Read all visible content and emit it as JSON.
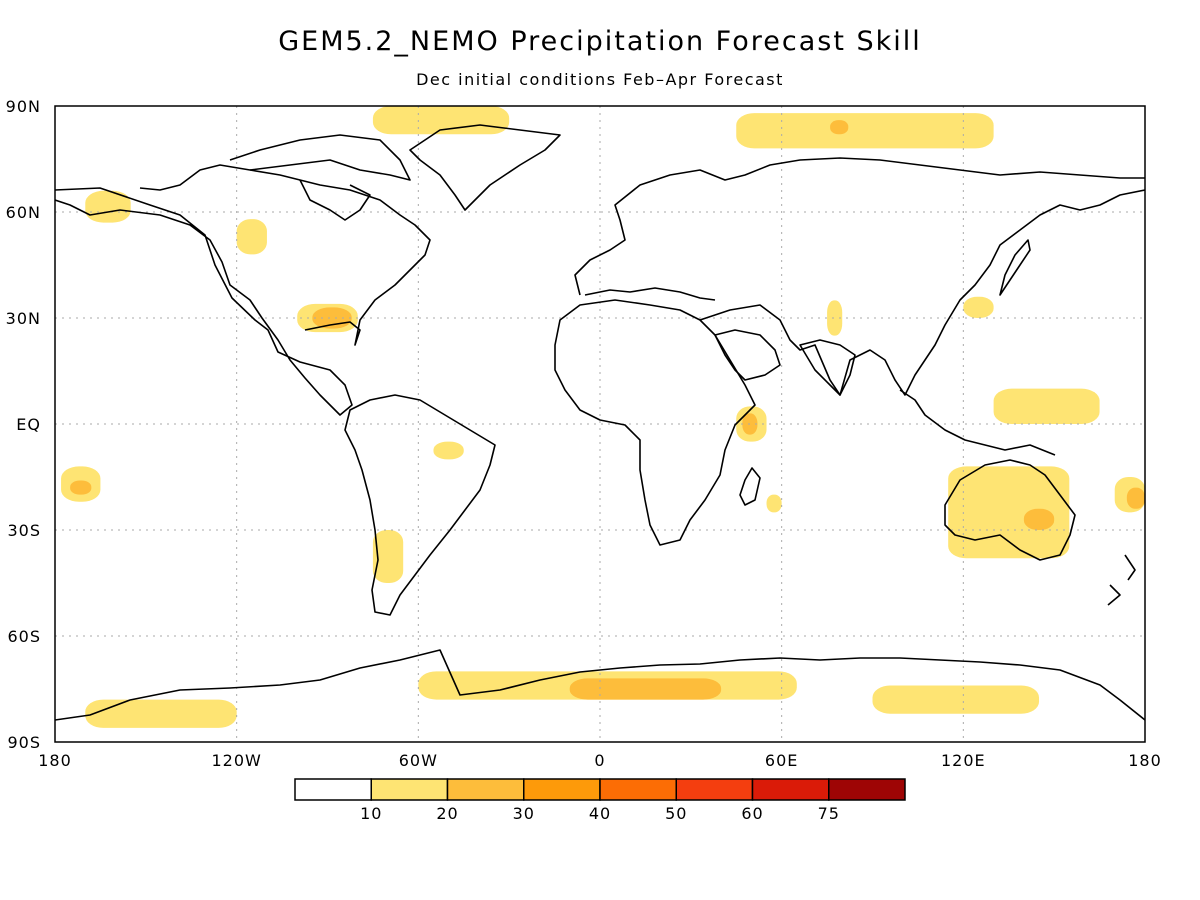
{
  "title": "GEM5.2_NEMO Precipitation Forecast Skill",
  "subtitle": "Dec initial conditions  Feb–Apr Forecast",
  "axes": {
    "lat_ticks": [
      {
        "value": 90,
        "label": "90N"
      },
      {
        "value": 60,
        "label": "60N"
      },
      {
        "value": 30,
        "label": "30N"
      },
      {
        "value": 0,
        "label": "EQ"
      },
      {
        "value": -30,
        "label": "30S"
      },
      {
        "value": -60,
        "label": "60S"
      },
      {
        "value": -90,
        "label": "90S"
      }
    ],
    "lon_ticks": [
      {
        "value": -180,
        "label": "180"
      },
      {
        "value": -120,
        "label": "120W"
      },
      {
        "value": -60,
        "label": "60W"
      },
      {
        "value": 0,
        "label": "0"
      },
      {
        "value": 60,
        "label": "60E"
      },
      {
        "value": 120,
        "label": "120E"
      },
      {
        "value": 180,
        "label": "180"
      }
    ],
    "grid": true
  },
  "colorbar": {
    "bins": [
      {
        "color": "#ffffff"
      },
      {
        "color": "#fee473"
      },
      {
        "color": "#fdbd3b"
      },
      {
        "color": "#fd9a0a"
      },
      {
        "color": "#fc6d05"
      },
      {
        "color": "#f43e0f"
      },
      {
        "color": "#da1b08"
      },
      {
        "color": "#9e0505"
      }
    ],
    "labels": [
      "10",
      "20",
      "30",
      "40",
      "50",
      "60",
      "75"
    ]
  },
  "chart_data": {
    "type": "heatmap",
    "projection": "equirectangular",
    "lon_range": [
      -180,
      180
    ],
    "lat_range": [
      -90,
      90
    ],
    "variable": "precipitation forecast skill",
    "units": "%",
    "levels": [
      10,
      20,
      30,
      40,
      50,
      60,
      75
    ],
    "regions": [
      {
        "level": 10,
        "lon": [
          -60,
          65
        ],
        "lat": [
          -78,
          -70
        ]
      },
      {
        "level": 20,
        "lon": [
          -10,
          40
        ],
        "lat": [
          -78,
          -72
        ]
      },
      {
        "level": 10,
        "lon": [
          -170,
          -120
        ],
        "lat": [
          -86,
          -78
        ]
      },
      {
        "level": 10,
        "lon": [
          90,
          145
        ],
        "lat": [
          -82,
          -74
        ]
      },
      {
        "level": 10,
        "lon": [
          -75,
          -30
        ],
        "lat": [
          82,
          90
        ]
      },
      {
        "level": 10,
        "lon": [
          45,
          130
        ],
        "lat": [
          78,
          88
        ]
      },
      {
        "level": 20,
        "lon": [
          76,
          82
        ],
        "lat": [
          82,
          86
        ]
      },
      {
        "level": 10,
        "lon": [
          -100,
          -80
        ],
        "lat": [
          26,
          34
        ]
      },
      {
        "level": 20,
        "lon": [
          -95,
          -82
        ],
        "lat": [
          27,
          33
        ]
      },
      {
        "level": 10,
        "lon": [
          115,
          155
        ],
        "lat": [
          -38,
          -12
        ]
      },
      {
        "level": 20,
        "lon": [
          140,
          150
        ],
        "lat": [
          -30,
          -24
        ]
      },
      {
        "level": 10,
        "lon": [
          45,
          55
        ],
        "lat": [
          -5,
          5
        ]
      },
      {
        "level": 20,
        "lon": [
          47,
          52
        ],
        "lat": [
          -3,
          3
        ]
      },
      {
        "level": 10,
        "lon": [
          55,
          60
        ],
        "lat": [
          -25,
          -20
        ]
      },
      {
        "level": 10,
        "lon": [
          -178,
          -165
        ],
        "lat": [
          -22,
          -12
        ]
      },
      {
        "level": 20,
        "lon": [
          -175,
          -168
        ],
        "lat": [
          -20,
          -16
        ]
      },
      {
        "level": 10,
        "lon": [
          170,
          180
        ],
        "lat": [
          -25,
          -15
        ]
      },
      {
        "level": 20,
        "lon": [
          174,
          180
        ],
        "lat": [
          -24,
          -18
        ]
      },
      {
        "level": 10,
        "lon": [
          -75,
          -65
        ],
        "lat": [
          -45,
          -30
        ]
      },
      {
        "level": 10,
        "lon": [
          130,
          165
        ],
        "lat": [
          0,
          10
        ]
      },
      {
        "level": 10,
        "lon": [
          -170,
          -155
        ],
        "lat": [
          57,
          66
        ]
      },
      {
        "level": 10,
        "lon": [
          -120,
          -110
        ],
        "lat": [
          48,
          58
        ]
      },
      {
        "level": 10,
        "lon": [
          75,
          80
        ],
        "lat": [
          25,
          35
        ]
      },
      {
        "level": 10,
        "lon": [
          120,
          130
        ],
        "lat": [
          30,
          36
        ]
      },
      {
        "level": 10,
        "lon": [
          -55,
          -45
        ],
        "lat": [
          -10,
          -5
        ]
      }
    ]
  }
}
